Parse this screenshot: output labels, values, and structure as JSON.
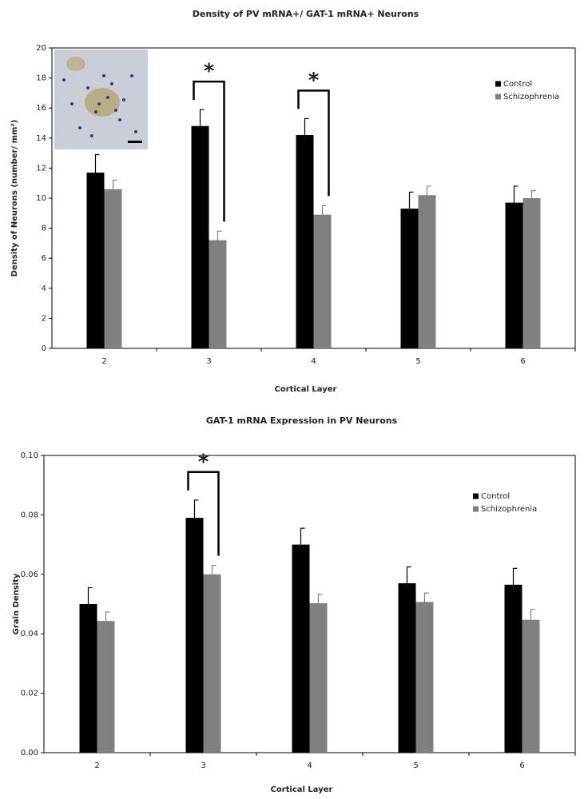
{
  "chart_data": [
    {
      "type": "bar",
      "title": "Density of PV mRNA+/ GAT-1 mRNA+ Neurons",
      "x_label": "Cortical Layer",
      "y_label": "Density of Neurons (number/ mm²)",
      "categories": [
        "2",
        "3",
        "4",
        "5",
        "6"
      ],
      "series": [
        {
          "name": "Control",
          "color": "#000000",
          "values": [
            11.7,
            14.8,
            14.2,
            9.3,
            9.7
          ],
          "errors": [
            1.2,
            1.1,
            1.1,
            1.1,
            1.1
          ]
        },
        {
          "name": "Schizophrenia",
          "color": "#808080",
          "values": [
            10.6,
            7.2,
            8.9,
            10.2,
            10.0
          ],
          "errors": [
            0.6,
            0.6,
            0.6,
            0.6,
            0.5
          ]
        }
      ],
      "ylim": [
        0,
        20
      ],
      "yticks": [
        0,
        2,
        4,
        6,
        8,
        10,
        12,
        14,
        16,
        18,
        20
      ],
      "annotations": [
        "*",
        "*"
      ],
      "legend": "upper right"
    },
    {
      "type": "bar",
      "title": "GAT-1 mRNA Expression in PV Neurons",
      "x_label": "Cortical Layer",
      "y_label": "Grain Density",
      "categories": [
        "2",
        "3",
        "4",
        "5",
        "6"
      ],
      "series": [
        {
          "name": "Control",
          "color": "#000000",
          "values": [
            0.05,
            0.079,
            0.07,
            0.057,
            0.0565
          ],
          "errors": [
            0.0055,
            0.006,
            0.0055,
            0.0055,
            0.0055
          ]
        },
        {
          "name": "Schizophrenia",
          "color": "#808080",
          "values": [
            0.0443,
            0.06,
            0.0503,
            0.0507,
            0.0447
          ],
          "errors": [
            0.003,
            0.003,
            0.003,
            0.003,
            0.0035
          ]
        }
      ],
      "ylim": [
        0,
        0.1
      ],
      "yticks": [
        {
          "value": 0,
          "label": "0.00"
        },
        {
          "value": 0.02,
          "label": "0.02"
        },
        {
          "value": 0.04,
          "label": "0.04"
        },
        {
          "value": 0.06,
          "label": "0.06"
        },
        {
          "value": 0.08,
          "label": "0.08"
        },
        {
          "value": 0.1,
          "label": "0.10"
        }
      ],
      "annotations": [
        "*"
      ],
      "legend": "upper right"
    }
  ]
}
